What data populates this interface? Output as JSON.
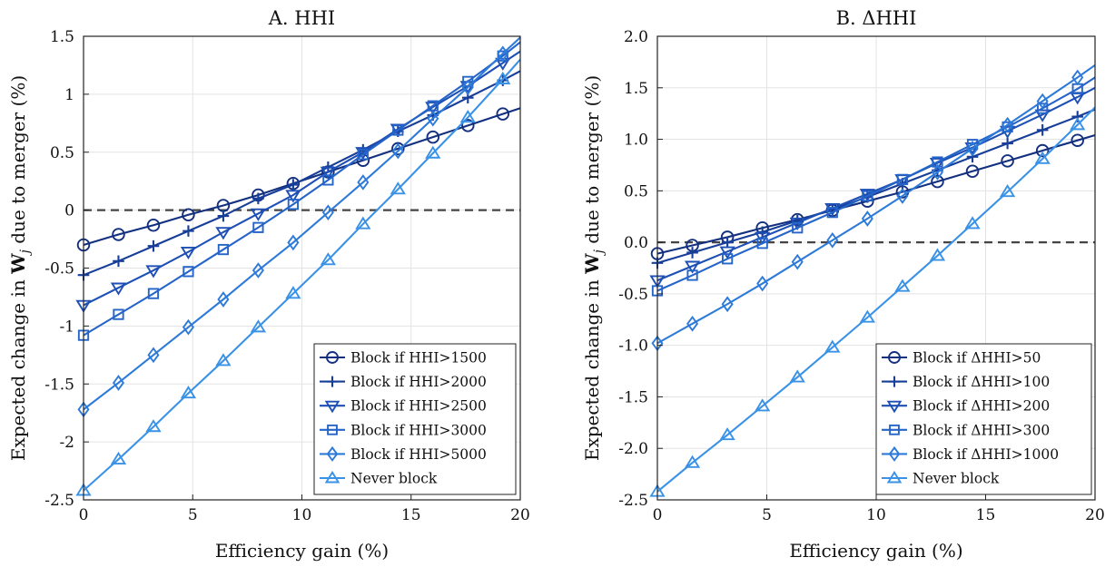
{
  "chart_data": [
    {
      "type": "line",
      "title": "A. HHI",
      "xlabel": "Efficiency gain (%)",
      "ylabel_pre": "Expected change in ",
      "ylabel_bold": "W",
      "ylabel_sub": "j",
      "ylabel_post": " due to merger (%)",
      "xlim": [
        0,
        20
      ],
      "ylim": [
        -2.5,
        1.5
      ],
      "xticks": [
        "0",
        "5",
        "10",
        "15",
        "20"
      ],
      "xtick_values": [
        0,
        5,
        10,
        15,
        20
      ],
      "yticks": [
        "-2.5",
        "-2",
        "-1.5",
        "-1",
        "-0.5",
        "0",
        "0.5",
        "1",
        "1.5"
      ],
      "ytick_values": [
        -2.5,
        -2,
        -1.5,
        -1,
        -0.5,
        0,
        0.5,
        1,
        1.5
      ],
      "grid": true,
      "reference_line": 0,
      "legend_position": "bottom-right",
      "marker_x": [
        0,
        1.6,
        3.2,
        4.8,
        6.4,
        8.0,
        9.6,
        11.2,
        12.8,
        14.4,
        16.0,
        17.6,
        19.2
      ],
      "line_end_x": 20,
      "series": [
        {
          "name": "Block if HHI>1500",
          "marker": "circle",
          "color": "#12307f",
          "values": [
            -0.3,
            -0.21,
            -0.13,
            -0.04,
            0.04,
            0.13,
            0.23,
            0.33,
            0.43,
            0.53,
            0.63,
            0.73,
            0.83
          ],
          "line_end_y": 0.88
        },
        {
          "name": "Block if HHI>2000",
          "marker": "plus",
          "color": "#173e99",
          "values": [
            -0.56,
            -0.44,
            -0.31,
            -0.18,
            -0.05,
            0.1,
            0.22,
            0.37,
            0.52,
            0.68,
            0.82,
            0.97,
            1.12
          ],
          "line_end_y": 1.2
        },
        {
          "name": "Block if HHI>2500",
          "marker": "triangle-down",
          "color": "#1d4fb5",
          "values": [
            -0.82,
            -0.67,
            -0.52,
            -0.36,
            -0.19,
            -0.03,
            0.13,
            0.33,
            0.5,
            0.7,
            0.89,
            1.07,
            1.27
          ],
          "line_end_y": 1.37
        },
        {
          "name": "Block if HHI>3000",
          "marker": "square",
          "color": "#2564c8",
          "values": [
            -1.08,
            -0.9,
            -0.72,
            -0.53,
            -0.34,
            -0.15,
            0.05,
            0.26,
            0.48,
            0.69,
            0.9,
            1.11,
            1.33
          ],
          "line_end_y": 1.45
        },
        {
          "name": "Block if HHI>5000",
          "marker": "diamond",
          "color": "#2d7ad9",
          "values": [
            -1.72,
            -1.49,
            -1.25,
            -1.01,
            -0.77,
            -0.52,
            -0.28,
            -0.02,
            0.24,
            0.51,
            0.79,
            1.06,
            1.35
          ],
          "line_end_y": 1.49
        },
        {
          "name": "Never block",
          "marker": "triangle-up",
          "color": "#3a92e6",
          "values": [
            -2.42,
            -2.15,
            -1.87,
            -1.58,
            -1.3,
            -1.01,
            -0.72,
            -0.43,
            -0.12,
            0.18,
            0.49,
            0.8,
            1.13
          ],
          "line_end_y": 1.3
        }
      ]
    },
    {
      "type": "line",
      "title": "B. ΔHHI",
      "xlabel": "Efficiency gain (%)",
      "ylabel_pre": "Expected change in ",
      "ylabel_bold": "W",
      "ylabel_sub": "j",
      "ylabel_post": " due to merger (%)",
      "xlim": [
        0,
        20
      ],
      "ylim": [
        -2.5,
        2.0
      ],
      "xticks": [
        "0",
        "5",
        "10",
        "15",
        "20"
      ],
      "xtick_values": [
        0,
        5,
        10,
        15,
        20
      ],
      "yticks": [
        "-2.5",
        "-2.0",
        "-1.5",
        "-1.0",
        "-0.5",
        "0.0",
        "0.5",
        "1.0",
        "1.5",
        "2.0"
      ],
      "ytick_values": [
        -2.5,
        -2.0,
        -1.5,
        -1.0,
        -0.5,
        0.0,
        0.5,
        1.0,
        1.5,
        2.0
      ],
      "grid": true,
      "reference_line": 0,
      "legend_position": "bottom-right",
      "marker_x": [
        0,
        1.6,
        3.2,
        4.8,
        6.4,
        8.0,
        9.6,
        11.2,
        12.8,
        14.4,
        16.0,
        17.6,
        19.2
      ],
      "line_end_x": 20,
      "series": [
        {
          "name": "Block if ΔHHI>50",
          "marker": "circle",
          "color": "#12307f",
          "values": [
            -0.11,
            -0.03,
            0.05,
            0.14,
            0.22,
            0.31,
            0.4,
            0.49,
            0.59,
            0.69,
            0.79,
            0.89,
            0.99
          ],
          "line_end_y": 1.04
        },
        {
          "name": "Block if ΔHHI>100",
          "marker": "plus",
          "color": "#173e99",
          "values": [
            -0.2,
            -0.1,
            0.0,
            0.1,
            0.21,
            0.32,
            0.44,
            0.57,
            0.7,
            0.83,
            0.96,
            1.09,
            1.22
          ],
          "line_end_y": 1.29
        },
        {
          "name": "Block if ΔHHI>200",
          "marker": "triangle-down",
          "color": "#1d4fb5",
          "values": [
            -0.37,
            -0.23,
            -0.09,
            0.05,
            0.19,
            0.33,
            0.47,
            0.61,
            0.77,
            0.92,
            1.08,
            1.24,
            1.41
          ],
          "line_end_y": 1.5
        },
        {
          "name": "Block if ΔHHI>300",
          "marker": "square",
          "color": "#2564c8",
          "values": [
            -0.47,
            -0.32,
            -0.16,
            -0.01,
            0.14,
            0.29,
            0.45,
            0.61,
            0.78,
            0.95,
            1.12,
            1.3,
            1.49
          ],
          "line_end_y": 1.6
        },
        {
          "name": "Block if ΔHHI>1000",
          "marker": "diamond",
          "color": "#2d7ad9",
          "values": [
            -0.98,
            -0.79,
            -0.6,
            -0.4,
            -0.19,
            0.02,
            0.23,
            0.45,
            0.68,
            0.91,
            1.14,
            1.37,
            1.6
          ],
          "line_end_y": 1.72
        },
        {
          "name": "Never block",
          "marker": "triangle-up",
          "color": "#3a92e6",
          "values": [
            -2.42,
            -2.14,
            -1.87,
            -1.59,
            -1.31,
            -1.02,
            -0.73,
            -0.43,
            -0.13,
            0.18,
            0.49,
            0.81,
            1.14
          ],
          "line_end_y": 1.31
        }
      ]
    }
  ]
}
